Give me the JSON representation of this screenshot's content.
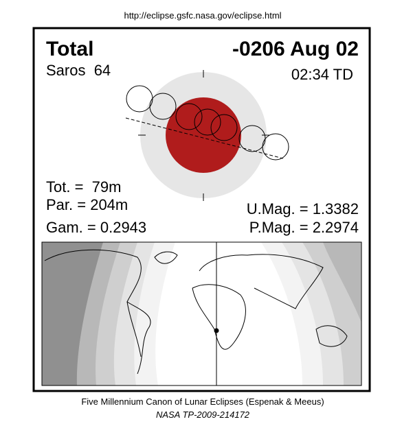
{
  "header": {
    "url": "http://eclipse.gsfc.nasa.gov/eclipse.html"
  },
  "eclipse": {
    "type": "Total",
    "date": "-0206 Aug 02",
    "saros": "Saros  64",
    "time": "02:34 TD",
    "total_duration": "Tot. =  79m",
    "partial_duration": "Par. = 204m",
    "gamma": "Gam. = 0.2943",
    "umbral_magnitude": "U.Mag. = 1.3382",
    "penumbral_magnitude": "P.Mag. = 2.2974"
  },
  "footer": {
    "credit": "Five Millennium Canon of Lunar Eclipses (Espenak & Meeus)",
    "publication": "NASA TP-2009-214172"
  }
}
